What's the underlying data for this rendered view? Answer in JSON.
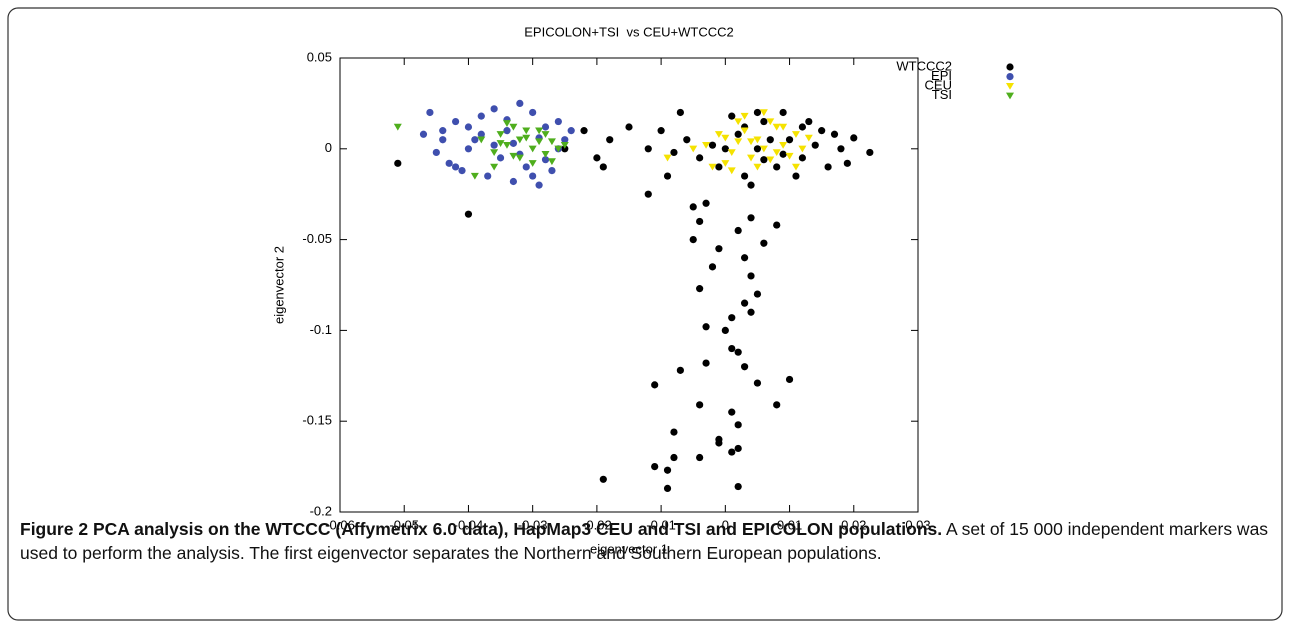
{
  "chart_data": {
    "type": "scatter",
    "title": "EPICOLON+TSI  vs CEU+WTCCC2",
    "xlabel": "eigenvector 1",
    "ylabel": "eigenvector 2",
    "xlim": [
      -0.06,
      0.03
    ],
    "ylim": [
      -0.2,
      0.05
    ],
    "xticks": [
      -0.06,
      -0.05,
      -0.04,
      -0.03,
      -0.02,
      -0.01,
      0,
      0.01,
      0.02,
      0.03
    ],
    "yticks": [
      0.05,
      0,
      -0.05,
      -0.1,
      -0.15,
      -0.2
    ],
    "legend": "upper-right",
    "series": [
      {
        "name": "WTCCC2",
        "color": "#000000",
        "marker": "circle",
        "x": [
          0.005,
          0.01,
          0.012,
          0.015,
          0.008,
          0.002,
          -0.002,
          0.018,
          0.02,
          0.0225,
          0.003,
          0.006,
          0.009,
          0.013,
          0.016,
          0.004,
          0.001,
          -0.004,
          0.007,
          0.011,
          0.014,
          0.017,
          -0.001,
          0.003,
          0.009,
          0.005,
          0.012,
          0,
          0.006,
          0.019,
          -0.006,
          -0.008,
          -0.01,
          -0.012,
          -0.015,
          -0.018,
          -0.02,
          -0.022,
          -0.025,
          -0.019,
          -0.009,
          -0.007,
          -0.051,
          -0.04,
          -0.012,
          -0.003,
          -0.005,
          -0.004,
          -0.005,
          0.002,
          0.004,
          0.008,
          0.003,
          -0.001,
          0.006,
          -0.002,
          0.004,
          0.005,
          -0.004,
          0.003,
          0.004,
          -0.003,
          0.001,
          0,
          0.001,
          -0.007,
          -0.011,
          -0.003,
          0.002,
          0.003,
          0.005,
          0.01,
          0.008,
          -0.004,
          0.001,
          0.002,
          -0.008,
          -0.001,
          -0.001,
          0.002,
          -0.004,
          -0.008,
          -0.011,
          -0.009,
          0.001,
          -0.019,
          -0.009,
          0.002
        ],
        "y": [
          0,
          0.005,
          -0.005,
          0.01,
          -0.01,
          0.008,
          0.002,
          0,
          0.006,
          -0.002,
          -0.015,
          0.015,
          0.02,
          0.015,
          -0.01,
          -0.02,
          0.018,
          -0.005,
          0.005,
          -0.015,
          0.002,
          0.008,
          -0.01,
          0.012,
          -0.003,
          0.02,
          0.012,
          0,
          -0.006,
          -0.008,
          0.005,
          -0.002,
          0.01,
          0,
          0.012,
          0.005,
          -0.005,
          0.01,
          0,
          -0.01,
          -0.015,
          0.02,
          -0.008,
          -0.036,
          -0.025,
          -0.03,
          -0.032,
          -0.04,
          -0.05,
          -0.045,
          -0.038,
          -0.042,
          -0.06,
          -0.055,
          -0.052,
          -0.065,
          -0.07,
          -0.08,
          -0.077,
          -0.085,
          -0.09,
          -0.098,
          -0.093,
          -0.1,
          -0.11,
          -0.122,
          -0.13,
          -0.118,
          -0.112,
          -0.12,
          -0.129,
          -0.127,
          -0.141,
          -0.141,
          -0.145,
          -0.152,
          -0.156,
          -0.16,
          -0.162,
          -0.165,
          -0.17,
          -0.17,
          -0.175,
          -0.177,
          -0.167,
          -0.182,
          -0.187,
          -0.186
        ]
      },
      {
        "name": "EPI",
        "color": "#3f4fae",
        "marker": "circle",
        "x": [
          -0.046,
          -0.044,
          -0.042,
          -0.04,
          -0.038,
          -0.036,
          -0.034,
          -0.032,
          -0.03,
          -0.028,
          -0.026,
          -0.025,
          -0.045,
          -0.043,
          -0.041,
          -0.039,
          -0.037,
          -0.035,
          -0.033,
          -0.031,
          -0.029,
          -0.027,
          -0.044,
          -0.04,
          -0.036,
          -0.032,
          -0.028,
          -0.042,
          -0.038,
          -0.034,
          -0.03,
          -0.026,
          -0.047,
          -0.033,
          -0.029,
          -0.024
        ],
        "y": [
          0.02,
          0.01,
          0.015,
          0.0,
          0.018,
          0.022,
          0.01,
          0.025,
          0.02,
          0.012,
          0.015,
          0.005,
          -0.002,
          -0.008,
          -0.012,
          0.005,
          -0.015,
          -0.005,
          -0.018,
          -0.01,
          -0.02,
          -0.012,
          0.005,
          0.012,
          0.002,
          -0.003,
          -0.006,
          -0.01,
          0.008,
          0.016,
          -0.015,
          0.0,
          0.008,
          0.003,
          0.006,
          0.01
        ]
      },
      {
        "name": "CEU",
        "color": "#f5e200",
        "marker": "triangle-down",
        "x": [
          -0.003,
          -0.001,
          0.001,
          0.003,
          0.005,
          0.007,
          0.009,
          0.011,
          0.0,
          0.002,
          0.004,
          0.006,
          0.008,
          0.01,
          0.012,
          -0.002,
          0.001,
          0.003,
          0.005,
          0.007,
          0.009,
          0.004,
          0.006,
          0.008,
          -0.005,
          0.002,
          0.011,
          0.013,
          -0.009,
          0.0
        ],
        "y": [
          0.002,
          0.008,
          -0.002,
          0.01,
          0.005,
          0.015,
          0.002,
          0.008,
          -0.008,
          0.015,
          -0.005,
          0.0,
          0.012,
          -0.004,
          0.0,
          -0.01,
          -0.012,
          0.018,
          -0.01,
          -0.006,
          0.012,
          0.004,
          0.02,
          -0.002,
          0.0,
          0.004,
          -0.01,
          0.006,
          -0.005,
          0.006
        ]
      },
      {
        "name": "TSI",
        "color": "#4fae1d",
        "marker": "triangle-down",
        "x": [
          -0.051,
          -0.038,
          -0.036,
          -0.035,
          -0.034,
          -0.033,
          -0.032,
          -0.031,
          -0.03,
          -0.029,
          -0.028,
          -0.027,
          -0.036,
          -0.034,
          -0.032,
          -0.03,
          -0.028,
          -0.026,
          -0.035,
          -0.033,
          -0.031,
          -0.029,
          -0.027,
          -0.039,
          -0.025
        ],
        "y": [
          0.012,
          0.005,
          -0.002,
          0.008,
          0.002,
          0.012,
          -0.005,
          0.006,
          0.0,
          0.01,
          -0.003,
          0.004,
          -0.01,
          0.014,
          0.005,
          -0.008,
          0.008,
          0.0,
          0.003,
          -0.004,
          0.01,
          0.004,
          -0.007,
          -0.015,
          0.002
        ]
      }
    ]
  },
  "caption": {
    "label": "Figure 2",
    "title": "PCA analysis on the WTCCC (Affymetrix 6.0 data), HapMap3 CEU and TSI and EPICOLON populations.",
    "text": "A set of 15 000 independent markers was used to perform the analysis. The first eigenvector separates the Northern and Southern European populations."
  }
}
